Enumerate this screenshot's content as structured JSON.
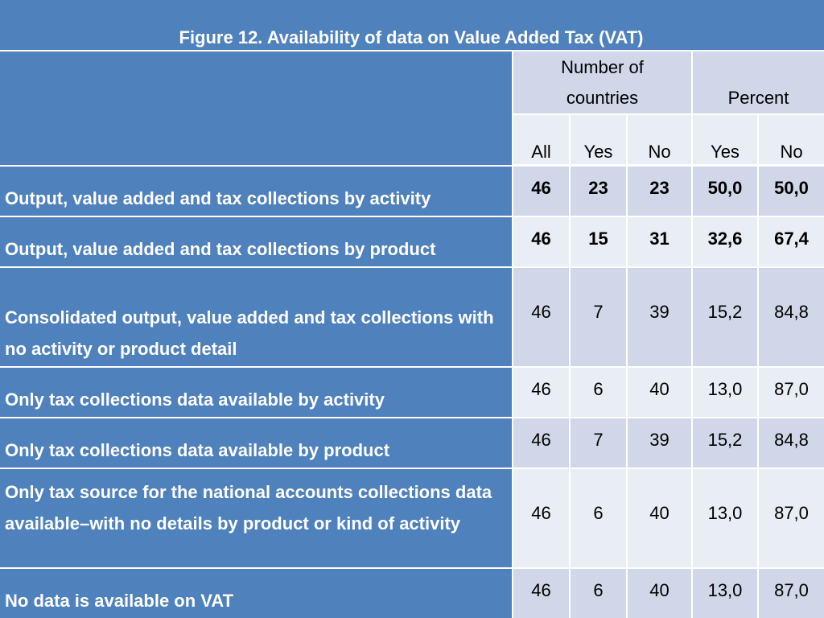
{
  "title": "Figure 12. Availability of data on Value Added Tax (VAT)",
  "header": {
    "group_count": "Number of countries",
    "group_count_line1": "Number of",
    "group_count_line2": "countries",
    "group_percent": "Percent",
    "cols": [
      "All",
      "Yes",
      "No",
      "Yes",
      "No"
    ]
  },
  "rows": [
    {
      "label": "Output, value added and tax collections by activity",
      "values": [
        "46",
        "23",
        "23",
        "50,0",
        "50,0"
      ],
      "bold": true
    },
    {
      "label": "Output, value added and tax collections by product",
      "values": [
        "46",
        "15",
        "31",
        "32,6",
        "67,4"
      ],
      "bold": true
    },
    {
      "label": "Consolidated output, value added and tax collections with no activity or product detail",
      "values": [
        "46",
        "7",
        "39",
        "15,2",
        "84,8"
      ],
      "bold": false
    },
    {
      "label": "Only tax collections data available by activity",
      "values": [
        "46",
        "6",
        "40",
        "13,0",
        "87,0"
      ],
      "bold": false
    },
    {
      "label": "Only tax collections data available by product",
      "values": [
        "46",
        "7",
        "39",
        "15,2",
        "84,8"
      ],
      "bold": false
    },
    {
      "label": "Only tax source for the national accounts collections data available–with no details by product or kind of activity",
      "values": [
        "46",
        "6",
        "40",
        "13,0",
        "87,0"
      ],
      "bold": false
    },
    {
      "label": "No data is available on VAT",
      "values": [
        "46",
        "6",
        "40",
        "13,0",
        "87,0"
      ],
      "bold": false
    }
  ],
  "colors": {
    "header_blue": "#4f81bd",
    "cell_dark": "#cfd7e8",
    "cell_light": "#e9edf4"
  }
}
